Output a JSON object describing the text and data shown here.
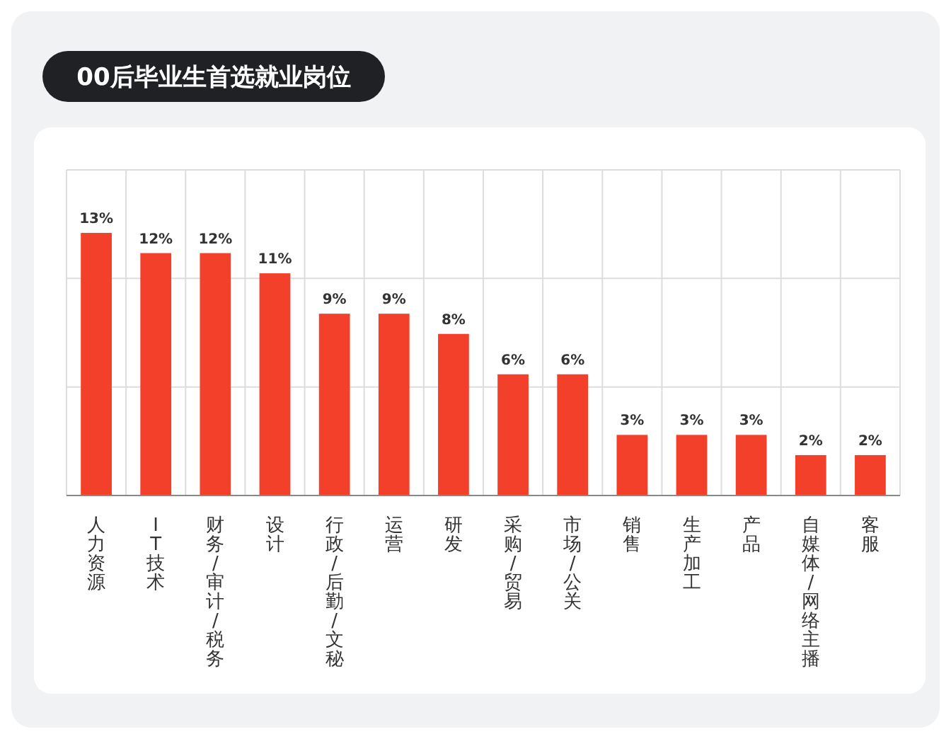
{
  "chart_data": {
    "type": "bar",
    "title": "00后毕业生首选就业岗位",
    "categories": [
      "人力资源",
      "IT技术",
      "财务/审计/税务",
      "设计",
      "行政/后勤/文秘",
      "运营",
      "研发",
      "采购/贸易",
      "市场/公关",
      "销售",
      "生产加工",
      "产品",
      "自媒体/网络主播",
      "客服"
    ],
    "values": [
      13,
      12,
      12,
      11,
      9,
      9,
      8,
      6,
      6,
      3,
      3,
      3,
      2,
      2
    ],
    "value_labels": [
      "13%",
      "12%",
      "12%",
      "11%",
      "9%",
      "9%",
      "8%",
      "6%",
      "6%",
      "3%",
      "3%",
      "3%",
      "2%",
      "2%"
    ],
    "color": "#f2402b",
    "grid": true
  }
}
